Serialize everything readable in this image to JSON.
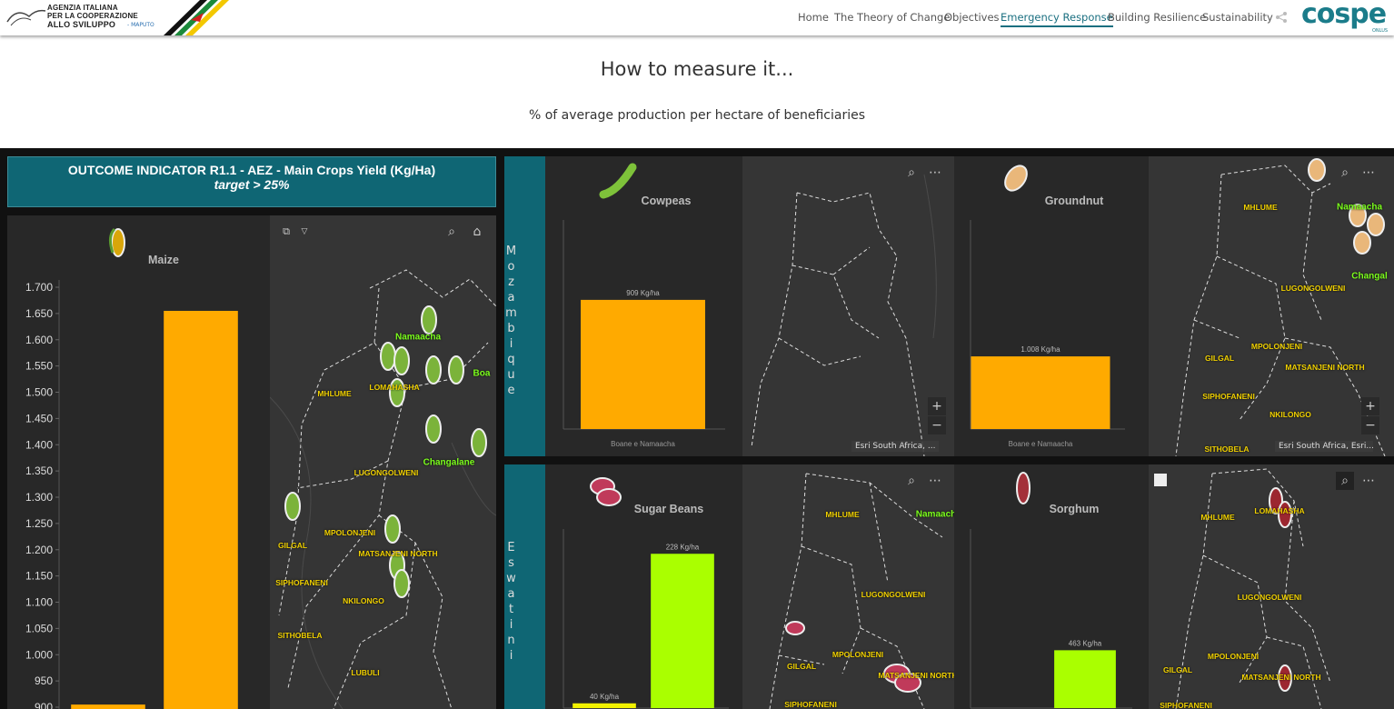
{
  "header": {
    "logo_lines": [
      "AGENZIA ITALIANA",
      "PER LA COOPERAZIONE",
      "ALLO SVILUPPO"
    ],
    "logo_sub": "- MAPUTO",
    "nav": [
      {
        "label": "Home"
      },
      {
        "label": "The Theory of Change"
      },
      {
        "label": "Objectives"
      },
      {
        "label": "Emergency Response",
        "active": true
      },
      {
        "label": "Building Resilience"
      },
      {
        "label": "Sustainability"
      }
    ],
    "brand": "cospe",
    "brand_sub": "ONLUS"
  },
  "section": {
    "title": "How to measure it...",
    "subtitle": "% of average production per hectare of beneficiaries"
  },
  "indicator": {
    "title": "OUTCOME INDICATOR R1.1 - AEZ - Main Crops Yield (Kg/Ha)",
    "target": "target > 25%"
  },
  "groups": [
    {
      "label": "Mozambique"
    },
    {
      "label": "Eswatini"
    }
  ],
  "chart_data": [
    {
      "type": "bar",
      "title": "Maize",
      "categories": [
        null,
        null
      ],
      "values": [
        905,
        1655
      ],
      "color": "#ffaa00",
      "ylim": [
        880,
        1700
      ],
      "yticks": [
        900,
        950,
        {
          "value": 1000,
          "label": "1.000"
        },
        {
          "value": 1050,
          "label": "1.050"
        },
        {
          "value": 1100,
          "label": "1.100"
        },
        {
          "value": 1150,
          "label": "1.150"
        },
        {
          "value": 1200,
          "label": "1.200"
        },
        {
          "value": 1250,
          "label": "1.250"
        },
        {
          "value": 1300,
          "label": "1.300"
        },
        {
          "value": 1350,
          "label": "1.350"
        },
        {
          "value": 1400,
          "label": "1.400"
        },
        {
          "value": 1450,
          "label": "1.450"
        },
        {
          "value": 1500,
          "label": "1.500"
        },
        {
          "value": 1550,
          "label": "1.550"
        },
        {
          "value": 1600,
          "label": "1.600"
        },
        {
          "value": 1650,
          "label": "1.650"
        },
        {
          "value": 1700,
          "label": "1.700"
        }
      ]
    },
    {
      "type": "bar",
      "title": "Cowpeas",
      "categories": [
        "Boane e Namaacha"
      ],
      "values": [
        909
      ],
      "value_labels": [
        "909 Kg/ha"
      ],
      "color": "#ffaa00",
      "ylim": [
        0,
        1420
      ]
    },
    {
      "type": "bar",
      "title": "Groundnut",
      "categories": [
        "Boane e Namaacha"
      ],
      "values": [
        1008
      ],
      "value_labels": [
        "1.008 Kg/ha"
      ],
      "color": "#ffaa00",
      "ylim": [
        0,
        2800
      ]
    },
    {
      "type": "bar",
      "title": "Sugar Beans",
      "categories": [
        null,
        null
      ],
      "values": [
        40,
        228
      ],
      "value_labels": [
        "40 Kg/ha",
        "228 Kg/ha"
      ],
      "colors": [
        "#f2f200",
        "#aaff00"
      ],
      "ylim": [
        34,
        250
      ]
    },
    {
      "type": "bar",
      "title": "Sorghum",
      "categories": [
        null
      ],
      "values": [
        463
      ],
      "value_labels": [
        "463 Kg/ha"
      ],
      "color": "#aaff00",
      "ylim": [
        0,
        1375
      ]
    }
  ],
  "maps": [
    {
      "labels": [
        "Namaacha",
        "Boa",
        "MHLUME",
        "LOMAHASHA",
        "Changalane",
        "LUGONGOLWENI",
        "MPOLONJENI",
        "GILGAL",
        "MATSANJENI NORTH",
        "SIPHOFANENI",
        "NKILONGO",
        "SITHOBELA",
        "LUBULI"
      ]
    },
    {
      "labels": [],
      "attribution": "Esri South Africa, ..."
    },
    {
      "labels": [
        "MHLUME",
        "Namaacha",
        "Changal",
        "LUGONGOLWENI",
        "MPOLONJENI",
        "GILGAL",
        "MATSANJENI NORTH",
        "SIPHOFANENI",
        "NKILONGO",
        "SITHOBELA"
      ],
      "attribution": "Esri South Africa, Esri..."
    },
    {
      "labels": [
        "MHLUME",
        "Namaach",
        "LUGONGOLWENI",
        "MPOLONJENI",
        "GILGAL",
        "MATSANJENI NORTH",
        "SIPHOFANENI"
      ]
    },
    {
      "labels": [
        "MHLUME",
        "LOMAHASHA",
        "LUGONGOLWENI",
        "MPOLONJENI",
        "GILGAL",
        "MATSANJENI NORTH",
        "SIPHOFANENI"
      ]
    }
  ]
}
